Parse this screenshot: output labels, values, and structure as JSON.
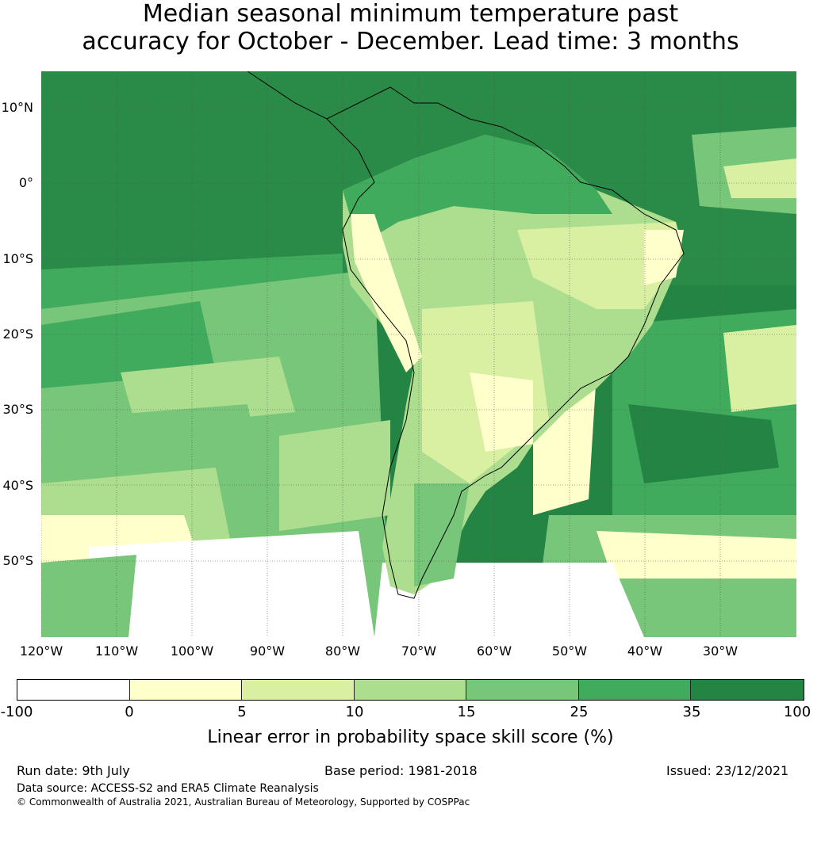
{
  "title": {
    "line1": "Median seasonal minimum temperature past",
    "line2": "accuracy for October - December. Lead time: 3 months"
  },
  "map": {
    "lat_labels": [
      "10°N",
      "0°",
      "10°S",
      "20°S",
      "30°S",
      "40°S",
      "50°S"
    ],
    "lon_labels": [
      "120°W",
      "110°W",
      "100°W",
      "90°W",
      "80°W",
      "70°W",
      "60°W",
      "50°W",
      "40°W",
      "30°W"
    ],
    "colors": {
      "ocean_dark": "#238443",
      "mid_green": "#41ab5d",
      "light_green": "#78c679",
      "pale_green": "#addd8e",
      "yellow_green": "#d9f0a3",
      "pale_yellow": "#ffffcc",
      "white": "#ffffff"
    }
  },
  "colorbar": {
    "ticks": [
      "-100",
      "0",
      "5",
      "10",
      "15",
      "25",
      "35",
      "100"
    ],
    "colors": [
      "#ffffff",
      "#ffffcc",
      "#d9f0a3",
      "#addd8e",
      "#78c679",
      "#41ab5d",
      "#238443"
    ],
    "label": "Linear error in probability space skill score (%)"
  },
  "footer": {
    "run_date": "Run date: 9th July",
    "base_period": "Base period: 1981-2018",
    "issued": "Issued: 23/12/2021",
    "data_source": "Data source: ACCESS-S2 and ERA5 Climate Reanalysis",
    "copyright": "© Commonwealth of Australia 2021, Australian Bureau of Meteorology, Supported by COSPPac"
  }
}
